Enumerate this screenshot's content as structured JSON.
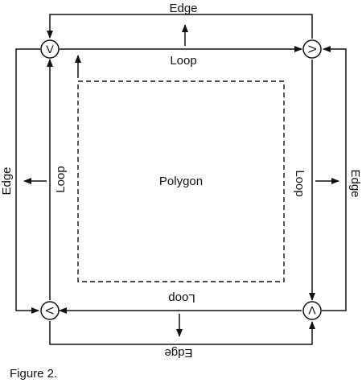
{
  "labels": {
    "edge": "Edge",
    "loop": "Loop",
    "polygon": "Polygon",
    "vertex": "V"
  },
  "caption": "Figure 2."
}
